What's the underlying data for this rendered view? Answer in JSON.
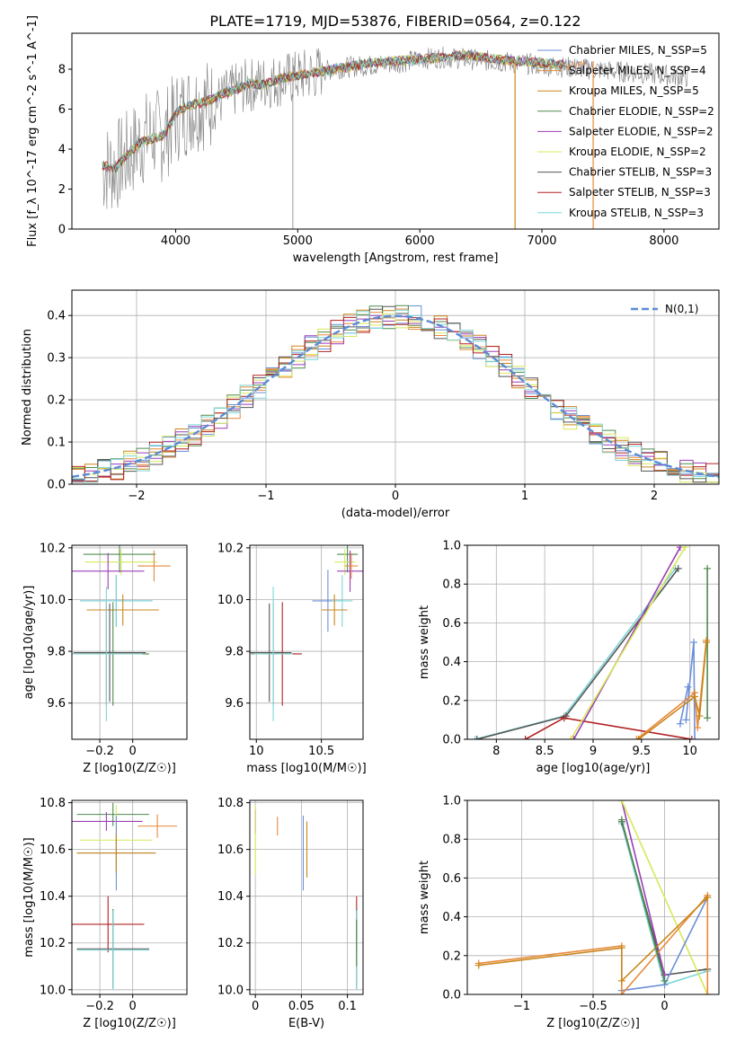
{
  "page": {
    "title": "PLATE=1719, MJD=53876, FIBERID=0564, z=0.122"
  },
  "models": [
    {
      "name": "Chabrier MILES, N_SSP=5",
      "color": "#6a8fd9"
    },
    {
      "name": "Salpeter MILES, N_SSP=4",
      "color": "#e8893a"
    },
    {
      "name": "Kroupa MILES, N_SSP=5",
      "color": "#c9861a"
    },
    {
      "name": "Chabrier ELODIE, N_SSP=2",
      "color": "#4f8a4f"
    },
    {
      "name": "Salpeter ELODIE, N_SSP=2",
      "color": "#9b3fb5"
    },
    {
      "name": "Kroupa ELODIE, N_SSP=2",
      "color": "#d7e85a"
    },
    {
      "name": "Chabrier STELIB, N_SSP=3",
      "color": "#555555"
    },
    {
      "name": "Salpeter STELIB, N_SSP=3",
      "color": "#b22222"
    },
    {
      "name": "Kroupa STELIB, N_SSP=3",
      "color": "#7fd6d6"
    }
  ],
  "chart_data": [
    {
      "id": "spectrum",
      "type": "line",
      "xlabel": "wavelength [Angstrom, rest frame]",
      "ylabel": "Flux [f_λ 10^-17 erg cm^-2 s^-1 A^-1]",
      "xlim": [
        3150,
        8450
      ],
      "ylim": [
        0,
        9.8
      ],
      "xticks": [
        4000,
        5000,
        6000,
        7000,
        8000
      ],
      "yticks": [
        0,
        2,
        4,
        6,
        8
      ],
      "observed_color": "#808080",
      "observed": {
        "x": [
          3400,
          3500,
          3600,
          3700,
          3800,
          3900,
          4000,
          4100,
          4200,
          4300,
          4400,
          4500,
          4600,
          4700,
          4800,
          4900,
          5000,
          5200,
          5400,
          5600,
          5800,
          6000,
          6200,
          6400,
          6600,
          6800,
          7000,
          7200,
          7400,
          7600,
          7800,
          8000,
          8200
        ],
        "y": [
          3.0,
          3.1,
          3.6,
          4.3,
          4.8,
          4.6,
          5.6,
          6.0,
          6.3,
          6.2,
          6.6,
          7.0,
          7.2,
          7.3,
          7.4,
          7.5,
          7.6,
          7.9,
          8.1,
          8.2,
          8.3,
          8.5,
          8.6,
          8.5,
          8.4,
          8.3,
          8.2,
          8.1,
          8.0,
          7.9,
          7.8,
          7.7,
          7.6
        ]
      },
      "model_fit": {
        "x": [
          3400,
          3500,
          3600,
          3700,
          3800,
          3900,
          4000,
          4100,
          4200,
          4300,
          4400,
          4500,
          4600,
          4700,
          4800,
          4900,
          5000,
          5200,
          5400,
          5600,
          5800,
          6000,
          6200,
          6400,
          6600,
          6800,
          7000,
          7200,
          7400
        ],
        "y": [
          3.2,
          3.0,
          3.7,
          4.3,
          4.5,
          4.7,
          5.8,
          6.2,
          6.3,
          6.5,
          6.8,
          7.0,
          7.3,
          7.2,
          7.4,
          7.6,
          7.7,
          7.9,
          8.1,
          8.3,
          8.4,
          8.5,
          8.6,
          8.7,
          8.5,
          8.4,
          8.3,
          8.2,
          8.2
        ]
      },
      "vertical_drops": [
        6780,
        7420
      ],
      "legend_position": "top-right"
    },
    {
      "id": "residuals",
      "type": "line",
      "xlabel": "(data-model)/error",
      "ylabel": "Normed distribution",
      "xlim": [
        -2.5,
        2.5
      ],
      "ylim": [
        0,
        0.46
      ],
      "xticks": [
        -2,
        -1,
        0,
        1,
        2
      ],
      "yticks": [
        0.0,
        0.1,
        0.2,
        0.3,
        0.4
      ],
      "grid": true,
      "normal_curve": {
        "name": "N(0,1)",
        "color": "#5b8bd6",
        "dashed": true
      },
      "legend_position": "top-right",
      "bin_width": 0.1
    },
    {
      "id": "age-vs-Z",
      "type": "scatter",
      "xlabel": "Z [log10(Z/Z☉)]",
      "ylabel": "age  [log10(age/yr)]",
      "xlim": [
        -0.37,
        0.33
      ],
      "ylim": [
        9.46,
        10.21
      ],
      "xticks": [
        -0.2,
        0.0
      ],
      "yticks": [
        9.6,
        9.8,
        10.0,
        10.2
      ],
      "grid": true
    },
    {
      "id": "age-vs-mass",
      "type": "scatter",
      "xlabel": "mass [log10(M/M☉)]",
      "ylabel": "",
      "xlim": [
        9.95,
        10.82
      ],
      "ylim": [
        9.46,
        10.21
      ],
      "xticks": [
        10.0,
        10.5
      ],
      "yticks": [
        9.6,
        9.8,
        10.0,
        10.2
      ],
      "grid": true
    },
    {
      "id": "weight-vs-age",
      "type": "line",
      "xlabel": "age  [log10(age/yr)]",
      "ylabel": "mass weight",
      "xlim": [
        7.7,
        10.3
      ],
      "ylim": [
        0,
        1
      ],
      "xticks": [
        8.0,
        8.5,
        9.0,
        9.5,
        10.0
      ],
      "yticks": [
        0.0,
        0.2,
        0.4,
        0.6,
        0.8,
        1.0
      ],
      "grid": true
    },
    {
      "id": "mass-vs-Z",
      "type": "scatter",
      "xlabel": "Z [log10(Z/Z☉)]",
      "ylabel": "mass [log10(M/M☉)]",
      "xlim": [
        -0.37,
        0.33
      ],
      "ylim": [
        9.98,
        10.81
      ],
      "xticks": [
        -0.2,
        0.0
      ],
      "yticks": [
        10.0,
        10.2,
        10.4,
        10.6,
        10.8
      ],
      "grid": true
    },
    {
      "id": "mass-vs-ebv",
      "type": "scatter",
      "xlabel": "E(B-V)",
      "ylabel": "",
      "xlim": [
        -0.006,
        0.117
      ],
      "ylim": [
        9.98,
        10.81
      ],
      "xticks": [
        0.0,
        0.05,
        0.1
      ],
      "yticks": [
        10.0,
        10.2,
        10.4,
        10.6,
        10.8
      ],
      "grid": true
    },
    {
      "id": "weight-vs-Z",
      "type": "line",
      "xlabel": "Z [log10(Z/Z☉)]",
      "ylabel": "mass weight",
      "xlim": [
        -1.38,
        0.38
      ],
      "ylim": [
        0,
        1
      ],
      "xticks": [
        -1.0,
        -0.5,
        0.0
      ],
      "yticks": [
        0.0,
        0.2,
        0.4,
        0.6,
        0.8,
        1.0
      ],
      "grid": true
    }
  ]
}
